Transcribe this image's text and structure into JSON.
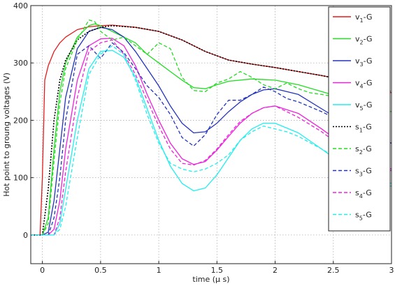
{
  "chart_data": {
    "type": "line",
    "title": "",
    "xlabel": "time (μ s)",
    "ylabel": "Hot point to groung voltages (V)",
    "xlim": [
      -0.1,
      3
    ],
    "ylim": [
      -50,
      400
    ],
    "xticks": [
      0,
      0.5,
      1,
      1.5,
      2,
      2.5,
      3
    ],
    "xtick_labels": [
      "0",
      "0.5",
      "1",
      "1.5",
      "2",
      "2.5",
      "3"
    ],
    "yticks": [
      0,
      100,
      200,
      300,
      400
    ],
    "ytick_labels": [
      "0",
      "100",
      "200",
      "300",
      "400"
    ],
    "grid": true,
    "legend_position": "right",
    "series": [
      {
        "name": "v1-G",
        "base": "v",
        "sub": "1",
        "rest": "-G",
        "color": "#e41a1c",
        "dash": "solid",
        "x": [
          -0.1,
          -0.02,
          0,
          0.02,
          0.05,
          0.1,
          0.15,
          0.2,
          0.3,
          0.4,
          0.5,
          0.6,
          0.8,
          1,
          1.2,
          1.4,
          1.6,
          1.8,
          2,
          2.2,
          2.4,
          2.6,
          2.8,
          3
        ],
        "y": [
          0,
          0,
          100,
          270,
          295,
          320,
          335,
          345,
          358,
          363,
          365,
          366,
          362,
          355,
          340,
          320,
          305,
          298,
          292,
          285,
          278,
          270,
          260,
          248
        ]
      },
      {
        "name": "v2-G",
        "base": "v",
        "sub": "2",
        "rest": "-G",
        "color": "#22dd22",
        "dash": "solid",
        "x": [
          -0.1,
          0,
          0.05,
          0.1,
          0.15,
          0.2,
          0.3,
          0.4,
          0.45,
          0.5,
          0.6,
          0.7,
          0.8,
          0.9,
          1,
          1.1,
          1.2,
          1.3,
          1.4,
          1.5,
          1.6,
          1.8,
          2,
          2.2,
          2.4,
          2.6,
          2.8,
          3
        ],
        "y": [
          0,
          0,
          30,
          150,
          250,
          300,
          345,
          365,
          368,
          365,
          355,
          345,
          335,
          315,
          300,
          285,
          270,
          257,
          255,
          262,
          268,
          272,
          270,
          262,
          250,
          238,
          222,
          215
        ]
      },
      {
        "name": "v3-G",
        "base": "v",
        "sub": "3",
        "rest": "-G",
        "color": "#2233bb",
        "dash": "solid",
        "x": [
          -0.1,
          0,
          0.05,
          0.1,
          0.15,
          0.2,
          0.3,
          0.4,
          0.5,
          0.6,
          0.7,
          0.8,
          0.9,
          1,
          1.1,
          1.2,
          1.3,
          1.4,
          1.5,
          1.6,
          1.7,
          1.8,
          1.9,
          2,
          2.2,
          2.4,
          2.6,
          2.8,
          3
        ],
        "y": [
          0,
          0,
          5,
          60,
          150,
          240,
          325,
          355,
          362,
          358,
          345,
          320,
          290,
          260,
          225,
          195,
          178,
          180,
          195,
          215,
          232,
          245,
          253,
          255,
          245,
          220,
          195,
          175,
          160
        ]
      },
      {
        "name": "v4-G",
        "base": "v",
        "sub": "4",
        "rest": "-G",
        "color": "#ee22dd",
        "dash": "solid",
        "x": [
          -0.1,
          0,
          0.05,
          0.1,
          0.15,
          0.2,
          0.3,
          0.4,
          0.5,
          0.6,
          0.7,
          0.8,
          0.9,
          1,
          1.1,
          1.2,
          1.3,
          1.4,
          1.5,
          1.6,
          1.7,
          1.8,
          1.9,
          2,
          2.2,
          2.4,
          2.6,
          2.8,
          3
        ],
        "y": [
          0,
          0,
          0,
          10,
          60,
          150,
          270,
          330,
          342,
          343,
          330,
          295,
          245,
          200,
          160,
          133,
          123,
          128,
          148,
          172,
          195,
          212,
          222,
          225,
          212,
          185,
          155,
          130,
          115
        ]
      },
      {
        "name": "v5-G",
        "base": "v",
        "sub": "5",
        "rest": "-G",
        "color": "#22eeee",
        "dash": "solid",
        "x": [
          -0.1,
          0,
          0.05,
          0.1,
          0.15,
          0.2,
          0.3,
          0.4,
          0.5,
          0.6,
          0.7,
          0.8,
          0.9,
          1,
          1.1,
          1.2,
          1.3,
          1.4,
          1.5,
          1.6,
          1.7,
          1.8,
          1.9,
          2,
          2.2,
          2.4,
          2.6,
          2.8,
          3
        ],
        "y": [
          0,
          0,
          0,
          0,
          20,
          80,
          200,
          290,
          320,
          322,
          310,
          275,
          220,
          165,
          120,
          90,
          77,
          82,
          105,
          135,
          165,
          185,
          195,
          195,
          178,
          150,
          120,
          95,
          85
        ]
      },
      {
        "name": "s1-G",
        "base": "s",
        "sub": "1",
        "rest": "-G",
        "color": "#000000",
        "dash": "dotted",
        "x": [
          -0.1,
          0,
          0.05,
          0.1,
          0.15,
          0.2,
          0.3,
          0.4,
          0.5,
          0.6,
          0.8,
          1,
          1.2,
          1.4,
          1.6,
          1.8,
          2,
          2.2,
          2.4,
          2.6,
          2.8,
          3
        ],
        "y": [
          0,
          0,
          80,
          200,
          270,
          305,
          340,
          355,
          362,
          365,
          362,
          355,
          340,
          320,
          305,
          298,
          292,
          285,
          278,
          270,
          260,
          250
        ]
      },
      {
        "name": "s2-G",
        "base": "s",
        "sub": "2",
        "rest": "-G",
        "color": "#22dd22",
        "dash": "dashed",
        "x": [
          -0.1,
          0,
          0.05,
          0.1,
          0.15,
          0.2,
          0.3,
          0.4,
          0.45,
          0.5,
          0.6,
          0.7,
          0.8,
          0.9,
          1,
          1.1,
          1.2,
          1.3,
          1.4,
          1.5,
          1.6,
          1.7,
          1.8,
          1.9,
          2,
          2.1,
          2.2,
          2.3,
          2.4,
          2.6,
          2.8,
          3
        ],
        "y": [
          0,
          0,
          20,
          130,
          230,
          290,
          340,
          375,
          372,
          355,
          340,
          345,
          330,
          315,
          335,
          325,
          275,
          252,
          250,
          265,
          272,
          285,
          275,
          262,
          255,
          265,
          255,
          248,
          245,
          238,
          225,
          215
        ]
      },
      {
        "name": "s3-G",
        "base": "s",
        "sub": "3",
        "rest": "-G",
        "color": "#2233bb",
        "dash": "dashed",
        "x": [
          -0.1,
          0,
          0.05,
          0.1,
          0.15,
          0.2,
          0.3,
          0.4,
          0.5,
          0.6,
          0.7,
          0.8,
          0.9,
          1,
          1.1,
          1.2,
          1.3,
          1.4,
          1.5,
          1.6,
          1.7,
          1.8,
          1.9,
          2,
          2.1,
          2.2,
          2.4,
          2.6,
          2.8,
          3
        ],
        "y": [
          0,
          0,
          0,
          30,
          100,
          200,
          315,
          330,
          308,
          335,
          318,
          290,
          260,
          240,
          210,
          170,
          155,
          175,
          210,
          235,
          235,
          245,
          258,
          250,
          238,
          232,
          215,
          195,
          175,
          160
        ]
      },
      {
        "name": "s4-G",
        "base": "s",
        "sub": "4",
        "rest": "-G",
        "color": "#ee22dd",
        "dash": "dashed",
        "x": [
          -0.1,
          0,
          0.05,
          0.1,
          0.15,
          0.2,
          0.3,
          0.4,
          0.5,
          0.6,
          0.7,
          0.8,
          0.9,
          1,
          1.1,
          1.2,
          1.3,
          1.4,
          1.5,
          1.6,
          1.7,
          1.8,
          1.9,
          2,
          2.1,
          2.2,
          2.4,
          2.6,
          2.8,
          3
        ],
        "y": [
          0,
          0,
          0,
          0,
          30,
          110,
          240,
          320,
          335,
          340,
          315,
          280,
          235,
          190,
          150,
          125,
          122,
          130,
          150,
          175,
          198,
          212,
          222,
          225,
          215,
          205,
          180,
          150,
          125,
          112
        ]
      },
      {
        "name": "s5-G",
        "base": "s",
        "sub": "5",
        "rest": "-G",
        "color": "#22eeee",
        "dash": "dashed",
        "x": [
          -0.1,
          0,
          0.05,
          0.1,
          0.15,
          0.2,
          0.3,
          0.4,
          0.5,
          0.6,
          0.7,
          0.8,
          0.9,
          1,
          1.1,
          1.2,
          1.3,
          1.4,
          1.5,
          1.6,
          1.7,
          1.8,
          1.9,
          2,
          2.1,
          2.2,
          2.4,
          2.6,
          2.8,
          3
        ],
        "y": [
          0,
          0,
          0,
          0,
          10,
          50,
          170,
          280,
          315,
          330,
          315,
          270,
          210,
          160,
          125,
          115,
          110,
          115,
          125,
          140,
          165,
          180,
          190,
          185,
          180,
          172,
          150,
          125,
          105,
          90
        ]
      }
    ]
  }
}
